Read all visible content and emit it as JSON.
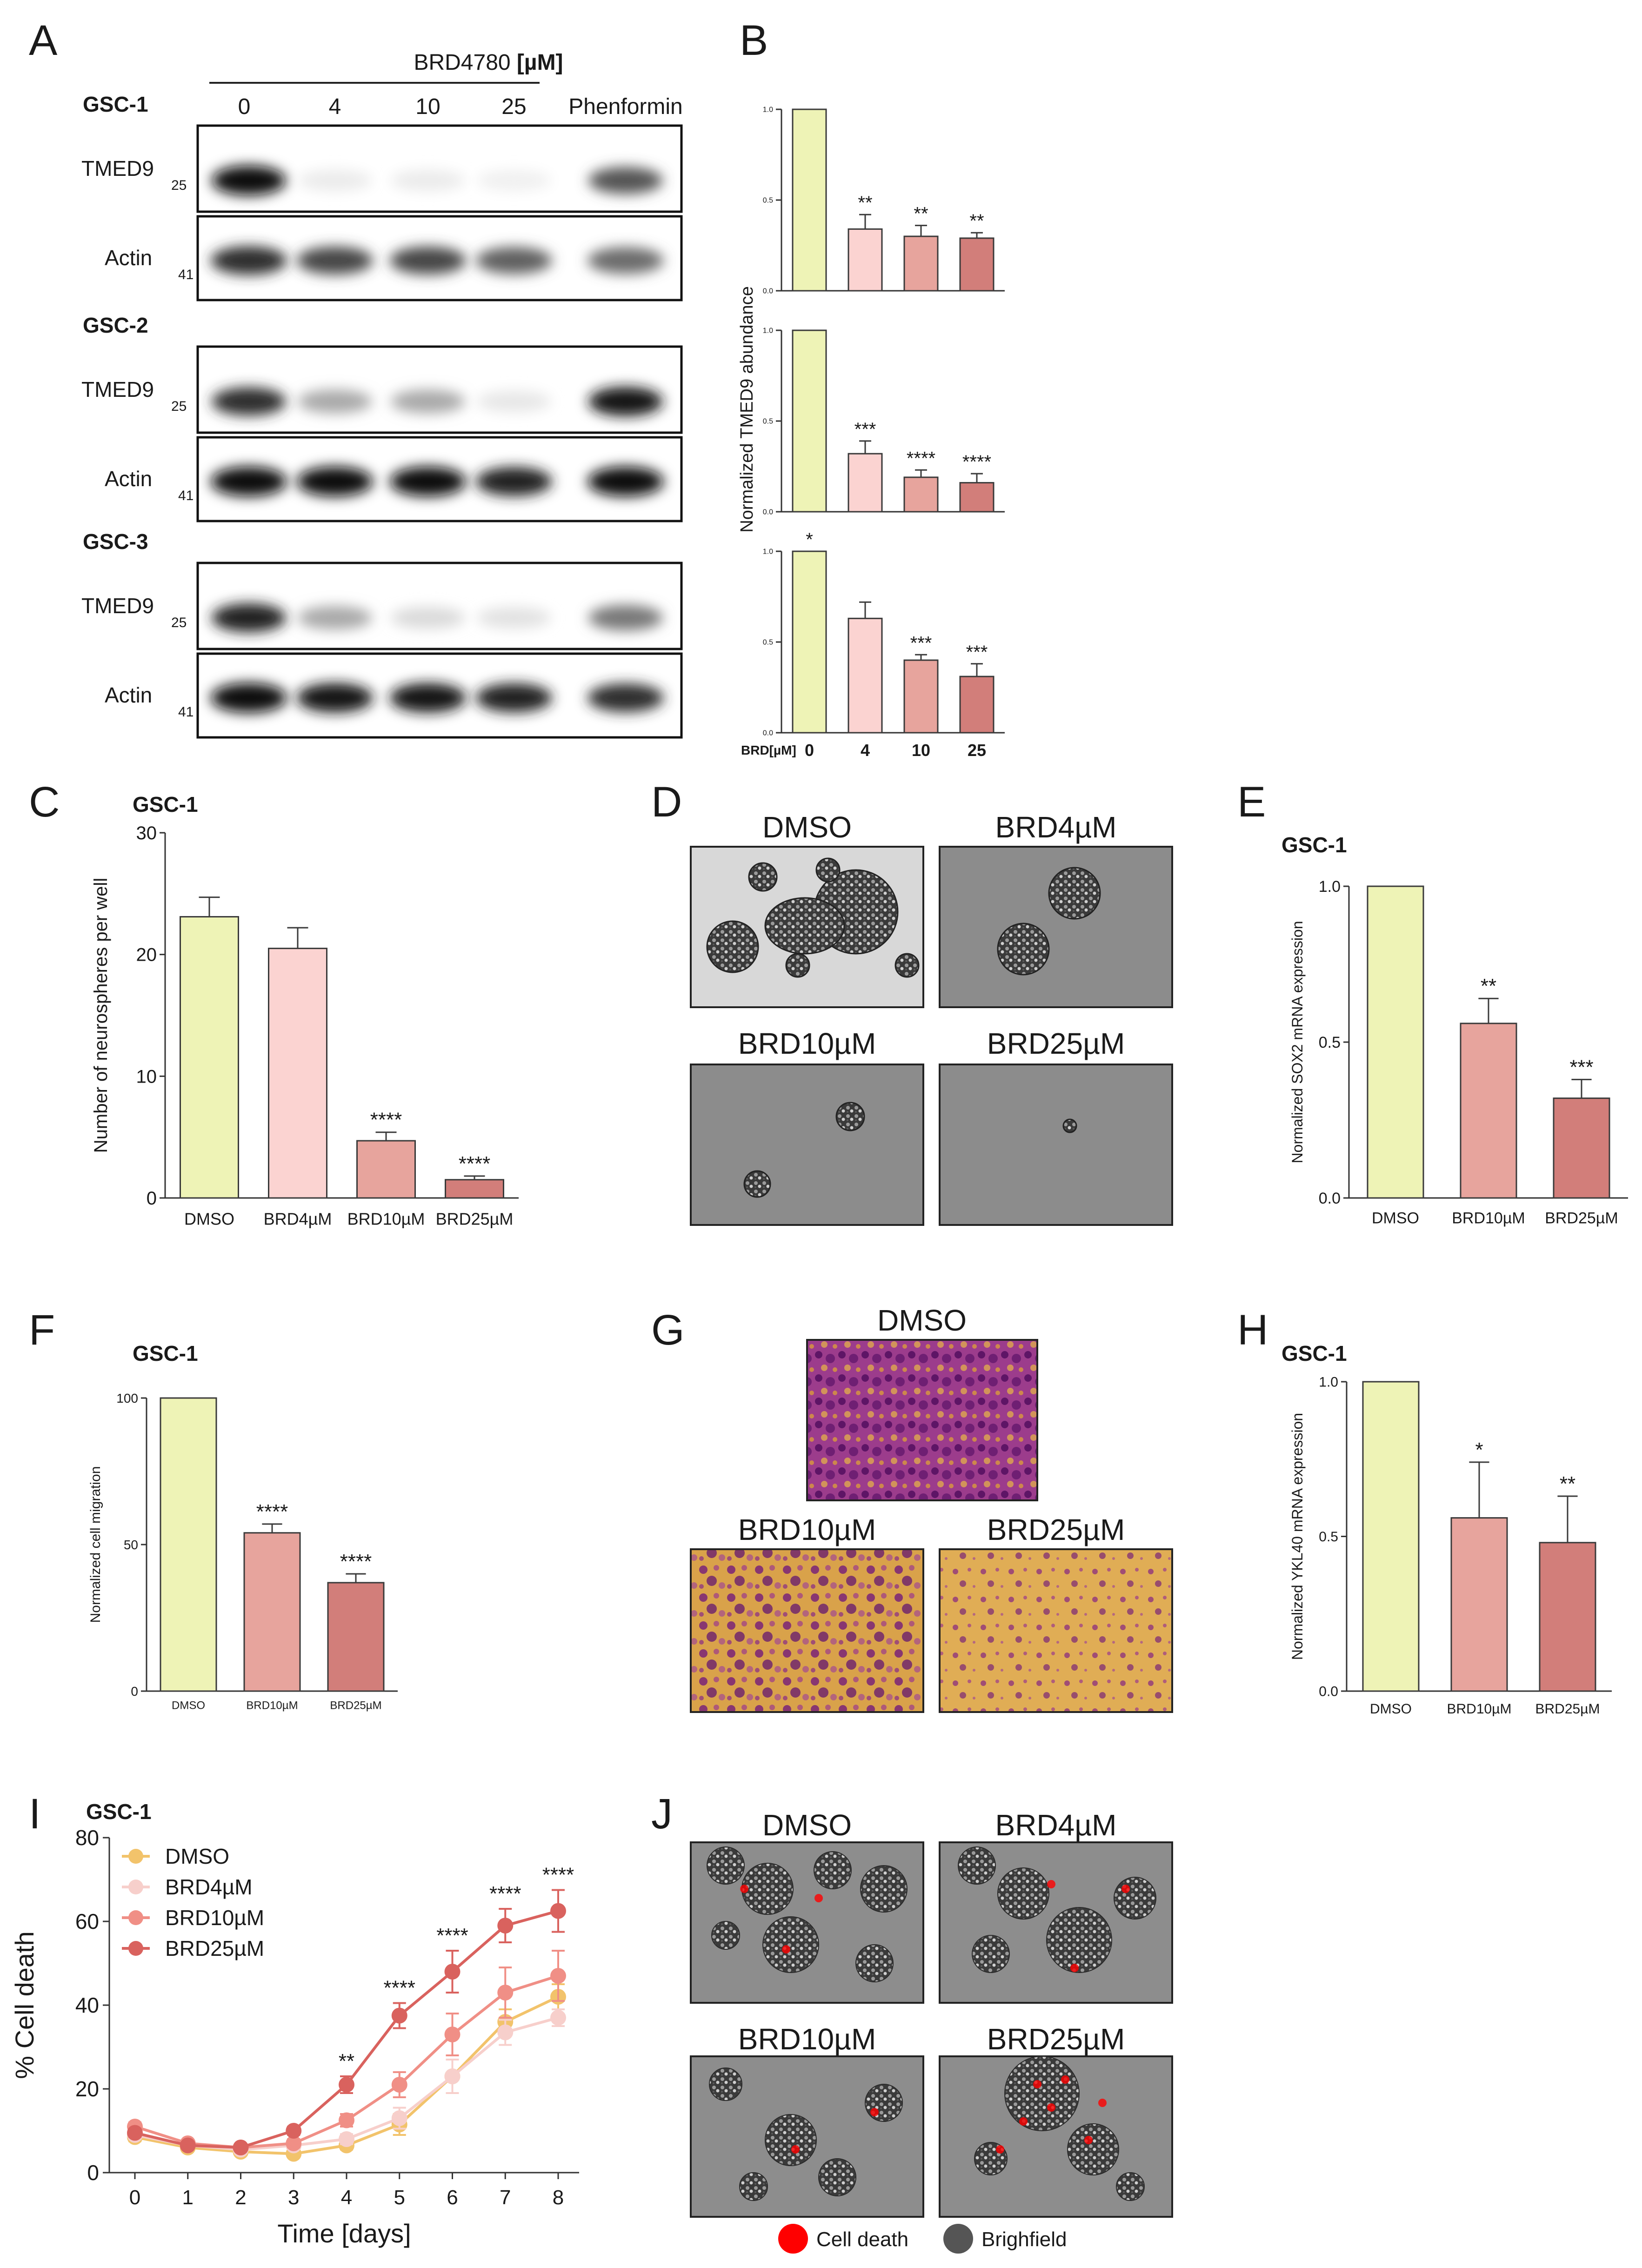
{
  "colors": {
    "c0": "#eef3b6",
    "c4": "#fbd3d1",
    "c10": "#e7a49d",
    "c25": "#d27e7a",
    "edge": "#3a3a3a",
    "dmso_line": "#f2c36b",
    "brd4_line": "#f7cfcb",
    "brd10_line": "#f08f86",
    "brd25_line": "#d9625e",
    "cell_death": "#ff0000",
    "brightfield": "#555555"
  },
  "panelA": {
    "letter": "A",
    "treatment_label": "BRD4780 ",
    "treatment_unit": "[µM]",
    "doses": [
      "0",
      "4",
      "10",
      "25"
    ],
    "control_label": "Phenformin",
    "blots": [
      {
        "cell_line": "GSC-1",
        "target": "TMED9",
        "target_mw": "25",
        "loading": "Actin",
        "loading_mw": "41",
        "target_bands": [
          1.0,
          0.08,
          0.08,
          0.06,
          0.7
        ],
        "loading_bands": [
          0.85,
          0.75,
          0.75,
          0.65,
          0.6
        ]
      },
      {
        "cell_line": "GSC-2",
        "target": "TMED9",
        "target_mw": "25",
        "loading": "Actin",
        "loading_mw": "41",
        "target_bands": [
          0.85,
          0.35,
          0.35,
          0.1,
          0.95
        ],
        "loading_bands": [
          1.0,
          1.0,
          1.0,
          0.9,
          1.0
        ]
      },
      {
        "cell_line": "GSC-3",
        "target": "TMED9",
        "target_mw": "25",
        "loading": "Actin",
        "loading_mw": "41",
        "target_bands": [
          0.9,
          0.35,
          0.15,
          0.12,
          0.55
        ],
        "loading_bands": [
          1.0,
          0.95,
          0.95,
          0.9,
          0.85
        ]
      }
    ]
  },
  "panelB": {
    "letter": "B",
    "ylabel": "Normalized TMED9 abundance",
    "xlabel_prefix": "BRD[µM]",
    "categories": [
      "0",
      "4",
      "10",
      "25"
    ],
    "yticks": [
      "0.0",
      "0.5",
      "1.0"
    ],
    "subplots": [
      {
        "values": [
          1.0,
          0.34,
          0.3,
          0.29
        ],
        "errors": [
          0,
          0.08,
          0.06,
          0.03
        ],
        "stars": [
          "",
          "**",
          "**",
          "**"
        ]
      },
      {
        "values": [
          1.0,
          0.32,
          0.19,
          0.16
        ],
        "errors": [
          0,
          0.07,
          0.04,
          0.05
        ],
        "stars": [
          "",
          "***",
          "****",
          "****"
        ]
      },
      {
        "values": [
          1.0,
          0.63,
          0.4,
          0.31
        ],
        "errors": [
          0,
          0.09,
          0.03,
          0.07
        ],
        "stars": [
          "*",
          "",
          "***",
          "***"
        ]
      }
    ]
  },
  "chart_data": [
    {
      "panel": "C",
      "type": "bar",
      "title": "GSC-1",
      "ylabel": "Number of neurospheres per well",
      "xlabel": "",
      "categories": [
        "DMSO",
        "BRD4µM",
        "BRD10µM",
        "BRD25µM"
      ],
      "values": [
        23.1,
        20.5,
        4.7,
        1.5
      ],
      "errors": [
        1.6,
        1.7,
        0.7,
        0.3
      ],
      "stars": [
        "",
        "",
        "****",
        "****"
      ],
      "ylim": [
        0,
        30
      ],
      "yticks": [
        "0",
        "10",
        "20",
        "30"
      ]
    },
    {
      "panel": "E",
      "type": "bar",
      "title": "GSC-1",
      "ylabel": "Normalized SOX2 mRNA expression",
      "xlabel": "",
      "categories": [
        "DMSO",
        "BRD10µM",
        "BRD25µM"
      ],
      "values": [
        1.0,
        0.56,
        0.32
      ],
      "errors": [
        0,
        0.08,
        0.06
      ],
      "stars": [
        "",
        "**",
        "***"
      ],
      "ylim": [
        0,
        1.0
      ],
      "yticks": [
        "0.0",
        "0.5",
        "1.0"
      ]
    },
    {
      "panel": "F",
      "type": "bar",
      "title": "GSC-1",
      "ylabel": "Normalized cell migration",
      "xlabel": "",
      "categories": [
        "DMSO",
        "BRD10µM",
        "BRD25µM"
      ],
      "values": [
        100,
        54,
        37
      ],
      "errors": [
        0,
        3,
        3
      ],
      "stars": [
        "",
        "****",
        "****"
      ],
      "ylim": [
        0,
        100
      ],
      "yticks": [
        "0",
        "50",
        "100"
      ]
    },
    {
      "panel": "H",
      "type": "bar",
      "title": "GSC-1",
      "ylabel": "Normalized YKL40 mRNA expression",
      "xlabel": "",
      "categories": [
        "DMSO",
        "BRD10µM",
        "BRD25µM"
      ],
      "values": [
        1.0,
        0.56,
        0.48
      ],
      "errors": [
        0,
        0.18,
        0.15
      ],
      "stars": [
        "",
        "*",
        "**"
      ],
      "ylim": [
        0,
        1.0
      ],
      "yticks": [
        "0.0",
        "0.5",
        "1.0"
      ]
    },
    {
      "panel": "I",
      "type": "line",
      "title": "GSC-1",
      "xlabel": "Time [days]",
      "ylabel": "% Cell death",
      "x": [
        0,
        1,
        2,
        3,
        4,
        5,
        6,
        7,
        8
      ],
      "ylim": [
        0,
        80
      ],
      "yticks": [
        "0",
        "20",
        "40",
        "60",
        "80"
      ],
      "xticks": [
        "0",
        "1",
        "2",
        "3",
        "4",
        "5",
        "6",
        "7",
        "8"
      ],
      "legend_position": "top-left",
      "series": [
        {
          "name": "DMSO",
          "values": [
            8.5,
            6,
            5,
            4.5,
            6.5,
            11.5,
            23,
            36,
            42
          ],
          "errors": [
            1,
            0.8,
            0.6,
            0.6,
            1,
            2.5,
            4,
            3,
            3
          ]
        },
        {
          "name": "BRD4µM",
          "values": [
            9,
            6.5,
            5.5,
            6.5,
            8,
            13,
            23,
            33.5,
            37
          ],
          "errors": [
            1,
            0.8,
            0.6,
            0.8,
            1.2,
            2.5,
            4,
            3,
            2
          ]
        },
        {
          "name": "BRD10µM",
          "values": [
            11,
            7,
            6,
            7,
            12.5,
            21,
            33,
            43,
            47
          ],
          "errors": [
            1,
            0.8,
            0.6,
            1,
            1.5,
            3,
            5,
            6,
            6
          ]
        },
        {
          "name": "BRD25µM",
          "values": [
            9.5,
            6.5,
            6,
            10,
            21,
            37.5,
            48,
            59,
            62.5
          ],
          "errors": [
            1,
            0.8,
            0.6,
            1,
            2,
            3,
            5,
            4,
            5
          ]
        }
      ],
      "stars": [
        "",
        "",
        "",
        "",
        "**",
        "****",
        "****",
        "****",
        "****"
      ]
    }
  ],
  "panelD": {
    "letter": "D",
    "labels": [
      "DMSO",
      "BRD4µM",
      "BRD10µM",
      "BRD25µM"
    ]
  },
  "panelG": {
    "letter": "G",
    "labels": [
      "DMSO",
      "BRD10µM",
      "BRD25µM"
    ]
  },
  "panelJ": {
    "letter": "J",
    "labels": [
      "DMSO",
      "BRD4µM",
      "BRD10µM",
      "BRD25µM"
    ],
    "legend": [
      "Cell death",
      "Brighfield"
    ]
  },
  "letters": {
    "C": "C",
    "E": "E",
    "F": "F",
    "H": "H",
    "I": "I"
  }
}
